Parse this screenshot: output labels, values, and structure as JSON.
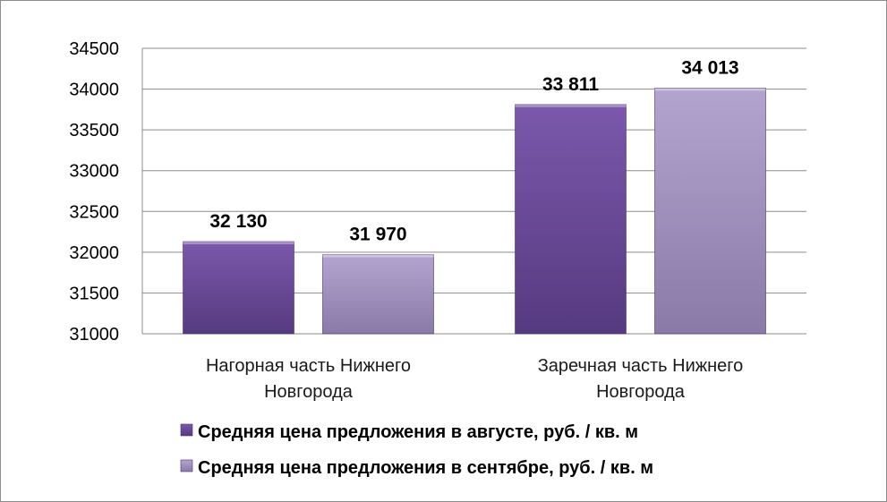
{
  "chart_data": {
    "type": "bar",
    "categories": [
      [
        "Нагорная часть Нижнего",
        "Новгорода"
      ],
      [
        "Заречная часть Нижнего",
        "Новгорода"
      ]
    ],
    "series": [
      {
        "name": "Средняя цена предложения в августе, руб. / кв. м",
        "values": [
          32130,
          33811
        ],
        "value_labels": [
          "32 130",
          "33 811"
        ],
        "color": "#6a4a96"
      },
      {
        "name": "Средняя цена предложения в сентябре, руб. / кв. м",
        "values": [
          31970,
          34013
        ],
        "value_labels": [
          "31 970",
          "34 013"
        ],
        "color": "#a898c4"
      }
    ],
    "ylim": [
      31000,
      34500
    ],
    "yticks": [
      31000,
      31500,
      32000,
      32500,
      33000,
      33500,
      34000,
      34500
    ],
    "grid": true,
    "legend_position": "bottom"
  }
}
